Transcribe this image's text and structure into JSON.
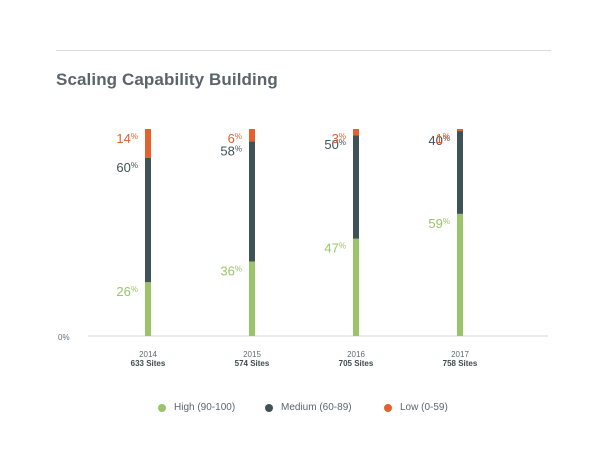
{
  "chart_data": {
    "type": "bar",
    "stacked": true,
    "title": "Scaling Capability Building",
    "categories": [
      "2014",
      "2015",
      "2016",
      "2017"
    ],
    "category_sublabels": [
      "633 Sites",
      "574 Sites",
      "705 Sites",
      "758 Sites"
    ],
    "series": [
      {
        "name": "High (90-100)",
        "color": "#9bc46a",
        "values": [
          26,
          36,
          47,
          59
        ]
      },
      {
        "name": "Medium (60-89)",
        "color": "#3f5256",
        "values": [
          60,
          58,
          50,
          40
        ]
      },
      {
        "name": "Low (0-59)",
        "color": "#e3612f",
        "values": [
          14,
          6,
          3,
          1
        ]
      }
    ],
    "ylim": [
      0,
      100
    ],
    "y_tick_labels": [
      "0%"
    ],
    "value_suffix": "%",
    "grid": false,
    "legend_position": "bottom"
  }
}
